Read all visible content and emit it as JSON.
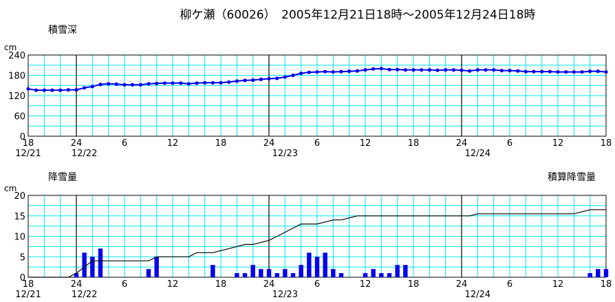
{
  "title": "柳ケ瀬（60026）　2005年12月21日18時～2005年12月24日18時",
  "colors": {
    "grid": "#00e5ee",
    "series": "#0000ee",
    "frame": "#000000"
  },
  "chart_data": [
    {
      "type": "line",
      "title": "積雪深",
      "unit": "cm",
      "ylim": [
        0,
        240
      ],
      "yticks": [
        0,
        60,
        120,
        180,
        240
      ],
      "xticks": [
        "18",
        "24",
        "6",
        "12",
        "18",
        "24",
        "6",
        "12",
        "18",
        "24",
        "6",
        "12",
        "18"
      ],
      "xdates": [
        {
          "label": "12/21",
          "hour": 0
        },
        {
          "label": "12/22",
          "hour": 7
        },
        {
          "label": "12/23",
          "hour": 32
        },
        {
          "label": "12/24",
          "hour": 56
        }
      ],
      "x_hours_from_start": [
        0,
        1,
        2,
        3,
        4,
        5,
        6,
        7,
        8,
        9,
        10,
        11,
        12,
        13,
        14,
        15,
        16,
        17,
        18,
        19,
        20,
        21,
        22,
        23,
        24,
        25,
        26,
        27,
        28,
        29,
        30,
        31,
        32,
        33,
        34,
        35,
        36,
        37,
        38,
        39,
        40,
        41,
        42,
        43,
        44,
        45,
        46,
        47,
        48,
        49,
        50,
        51,
        52,
        53,
        54,
        55,
        56,
        57,
        58,
        59,
        60,
        61,
        62,
        63,
        64,
        65,
        66,
        67,
        68,
        69,
        70,
        71,
        72
      ],
      "values": [
        140,
        136,
        136,
        136,
        136,
        137,
        137,
        143,
        147,
        153,
        155,
        154,
        152,
        152,
        152,
        155,
        156,
        157,
        157,
        157,
        155,
        157,
        158,
        158,
        158,
        160,
        163,
        165,
        166,
        168,
        170,
        171,
        175,
        180,
        186,
        189,
        190,
        191,
        190,
        191,
        192,
        193,
        196,
        199,
        200,
        197,
        197,
        196,
        196,
        196,
        196,
        195,
        196,
        196,
        195,
        193,
        196,
        196,
        196,
        194,
        194,
        193,
        191,
        191,
        191,
        191,
        190,
        190,
        190,
        190,
        192,
        192,
        190
      ]
    },
    {
      "type": "bar",
      "title": "降雪量",
      "secondary_title": "積算降雪量",
      "unit": "cm",
      "ylim": [
        0,
        20
      ],
      "yticks": [
        0,
        5,
        10,
        15,
        20
      ],
      "xticks": [
        "18",
        "24",
        "6",
        "12",
        "18",
        "24",
        "6",
        "12",
        "18",
        "24",
        "6",
        "12",
        "18"
      ],
      "xdates": [
        {
          "label": "12/21",
          "hour": 0
        },
        {
          "label": "12/22",
          "hour": 7
        },
        {
          "label": "12/23",
          "hour": 32
        },
        {
          "label": "12/24",
          "hour": 56
        }
      ],
      "x_hours_from_start": [
        0,
        1,
        2,
        3,
        4,
        5,
        6,
        7,
        8,
        9,
        10,
        11,
        12,
        13,
        14,
        15,
        16,
        17,
        18,
        19,
        20,
        21,
        22,
        23,
        24,
        25,
        26,
        27,
        28,
        29,
        30,
        31,
        32,
        33,
        34,
        35,
        36,
        37,
        38,
        39,
        40,
        41,
        42,
        43,
        44,
        45,
        46,
        47,
        48,
        49,
        50,
        51,
        52,
        53,
        54,
        55,
        56,
        57,
        58,
        59,
        60,
        61,
        62,
        63,
        64,
        65,
        66,
        67,
        68,
        69,
        70,
        71,
        72
      ],
      "values": [
        0,
        0,
        0,
        0,
        0,
        0,
        1,
        6,
        5,
        7,
        0,
        0,
        0,
        0,
        0,
        2,
        5,
        0,
        0,
        0,
        0,
        0,
        0,
        3,
        0,
        0,
        1,
        1,
        3,
        2,
        2,
        1,
        2,
        1,
        3,
        6,
        5,
        6,
        2,
        1,
        0,
        0,
        1,
        2,
        1,
        1,
        3,
        3,
        0,
        0,
        0,
        0,
        0,
        0,
        0,
        0,
        0,
        0,
        0,
        0,
        0,
        0,
        0,
        0,
        0,
        0,
        0,
        0,
        0,
        0,
        1,
        2,
        2
      ],
      "cumulative": [
        0,
        0,
        0,
        0,
        0,
        0,
        1,
        2.5,
        4,
        4,
        4,
        4,
        4,
        4,
        4,
        4,
        5,
        5,
        5,
        5,
        5,
        6,
        6,
        6,
        6.5,
        7,
        7.5,
        8,
        8,
        8.5,
        9,
        10,
        11,
        12,
        13,
        13,
        13,
        13.5,
        14,
        14,
        14.5,
        15,
        15,
        15,
        15,
        15,
        15,
        15,
        15,
        15,
        15,
        15,
        15,
        15,
        15,
        15,
        15.5,
        15.5,
        15.5,
        15.5,
        15.5,
        15.5,
        15.5,
        15.5,
        15.5,
        15.5,
        15.5,
        15.5,
        15.5,
        16,
        16.5,
        16.5,
        16.5
      ]
    }
  ]
}
